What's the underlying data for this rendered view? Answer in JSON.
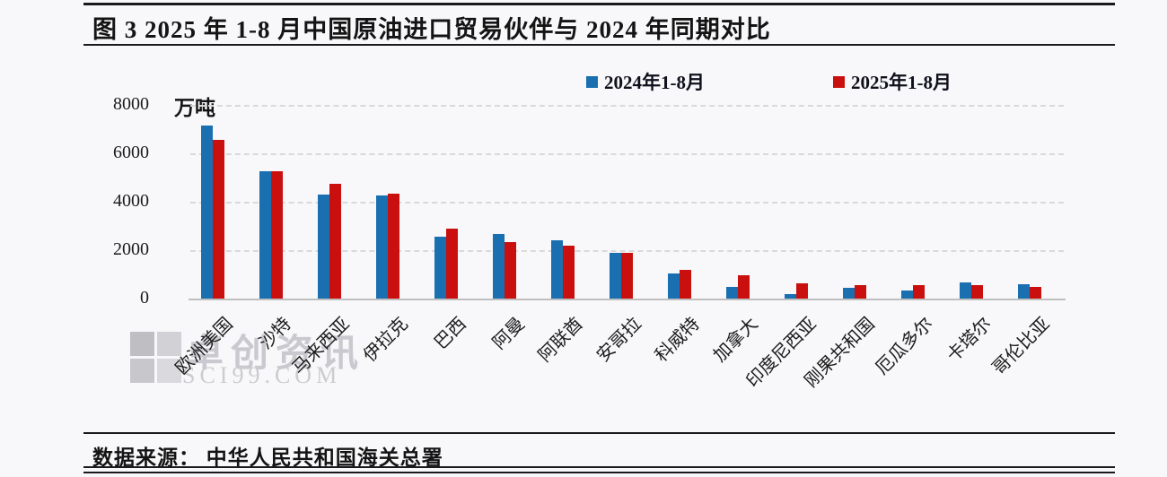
{
  "header": {
    "title": "图 3  2025 年 1-8 月中国原油进口贸易伙伴与 2024 年同期对比"
  },
  "legend": [
    {
      "label": "2024年1-8月",
      "color": "#1A6FB0"
    },
    {
      "label": "2025年1-8月",
      "color": "#C9100E"
    }
  ],
  "chart_data": {
    "type": "bar",
    "title": "2025年1-8月中国原油进口贸易伙伴与2024年同期对比",
    "unit_label": "万吨",
    "xlabel": "",
    "ylabel": "万吨",
    "ylim": [
      0,
      8000
    ],
    "yticks": [
      0,
      2000,
      4000,
      6000,
      8000
    ],
    "grid": "horizontal-dashed",
    "legend_position": "top",
    "categories": [
      "欧洲美国",
      "沙特",
      "马来西亚",
      "伊拉克",
      "巴西",
      "阿曼",
      "阿联酋",
      "安哥拉",
      "科威特",
      "加拿大",
      "印度尼西亚",
      "刚果共和国",
      "厄瓜多尔",
      "卡塔尔",
      "哥伦比亚"
    ],
    "series": [
      {
        "name": "2024年1-8月",
        "color": "#1A6FB0",
        "values": [
          7150,
          5250,
          4300,
          4260,
          2560,
          2660,
          2420,
          1900,
          1050,
          500,
          200,
          430,
          320,
          680,
          600
        ]
      },
      {
        "name": "2025年1-8月",
        "color": "#C9100E",
        "values": [
          6550,
          5270,
          4740,
          4320,
          2880,
          2350,
          2200,
          1900,
          1180,
          980,
          620,
          550,
          550,
          560,
          490
        ]
      }
    ]
  },
  "watermark": {
    "brand": "卓创资讯",
    "domain": "SCI99.COM"
  },
  "footer": {
    "source": "数据来源： 中华人民共和国海关总署"
  }
}
